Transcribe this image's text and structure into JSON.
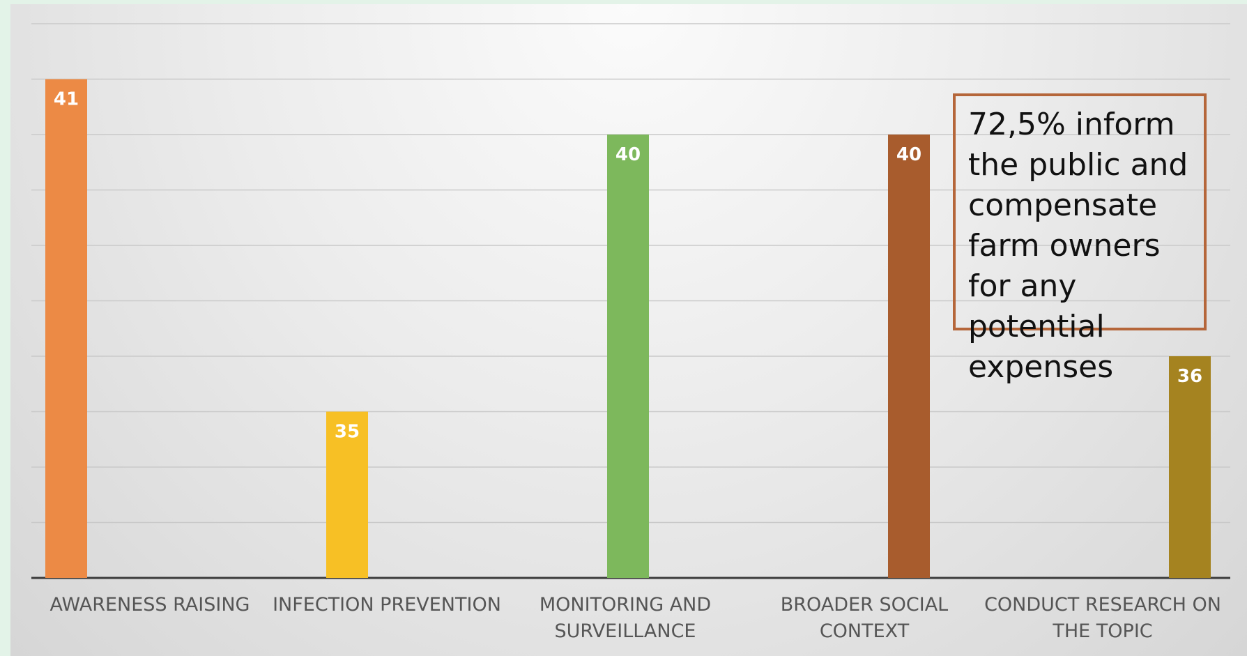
{
  "chart_data": {
    "type": "bar",
    "categories": [
      [
        "AWARENESS RAISING"
      ],
      [
        "INFECTION PREVENTION"
      ],
      [
        "MONITORING AND",
        "SURVEILLANCE"
      ],
      [
        "BROADER SOCIAL",
        "CONTEXT"
      ],
      [
        "CONDUCT RESEARCH ON",
        "THE TOPIC"
      ]
    ],
    "values": [
      41,
      35,
      40,
      40,
      36
    ],
    "colors": [
      "#ec8a45",
      "#f7c025",
      "#7db85c",
      "#a85c2d",
      "#a58320"
    ],
    "ylim": [
      32,
      43
    ],
    "grid": true,
    "data_labels": true
  },
  "annotation": {
    "text": "72,5% inform the public and compensate farm owners for any potential expenses",
    "border_color": "#b5663a"
  }
}
